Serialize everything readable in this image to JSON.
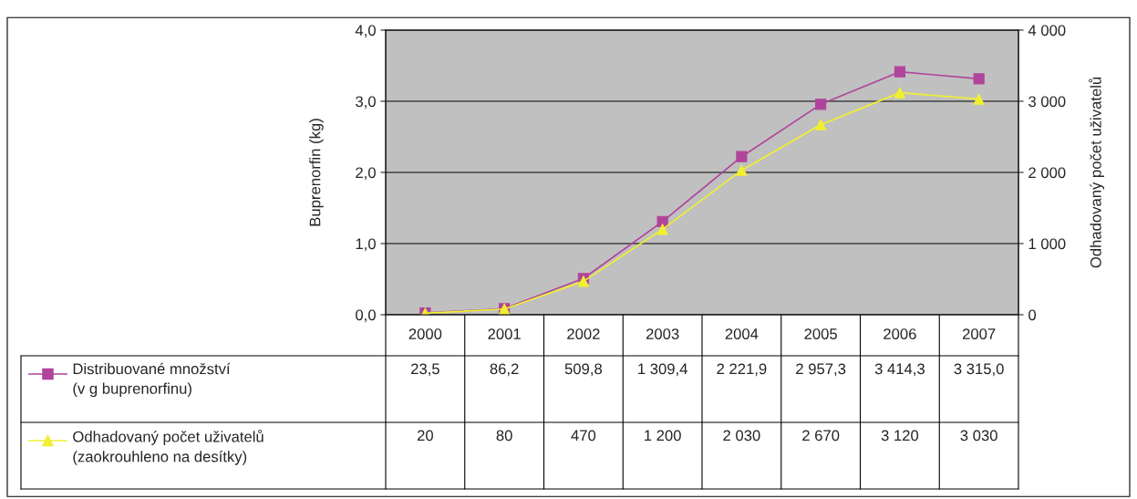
{
  "chart_data": {
    "type": "line",
    "categories": [
      "2000",
      "2001",
      "2002",
      "2003",
      "2004",
      "2005",
      "2006",
      "2007"
    ],
    "ylabel": "Buprenorfin (kg)",
    "y2label": "Odhadovaný počet uživatelů",
    "ylim": [
      0,
      4
    ],
    "yticks": [
      {
        "value": 0,
        "label": "0,0"
      },
      {
        "value": 1,
        "label": "1,0"
      },
      {
        "value": 2,
        "label": "2,0"
      },
      {
        "value": 3,
        "label": "3,0"
      },
      {
        "value": 4,
        "label": "4,0"
      }
    ],
    "y2lim": [
      0,
      4000
    ],
    "y2ticks": [
      0,
      {
        "value": 1000,
        "label": "1 000"
      },
      {
        "value": 2000,
        "label": "2 000"
      },
      {
        "value": 3000,
        "label": "3 000"
      },
      {
        "value": 4000,
        "label": "4 000"
      }
    ],
    "grid": "y",
    "legend": "bottom",
    "series": [
      {
        "name": "Distribuované množství (v g buprenorfinu)",
        "color": "#b0449c",
        "marker": "square",
        "axis": "y2",
        "values": [
          23.5,
          86.2,
          509.8,
          1309.4,
          2221.9,
          2957.3,
          3414.3,
          3315.0
        ],
        "value_labels": [
          "23,5",
          "86,2",
          "509,8",
          "1 309,4",
          "2 221,9",
          "2 957,3",
          "3 414,3",
          "3 315,0"
        ]
      },
      {
        "name": "Odhadovaný počet uživatelů (zaokrouhleno na desítky)",
        "color": "#f0f030",
        "marker": "triangle",
        "axis": "y2",
        "values": [
          20,
          80,
          470,
          1200,
          2030,
          2670,
          3120,
          3030
        ],
        "value_labels": [
          "20",
          "80",
          "470",
          "1 200",
          "2 030",
          "2 670",
          "3 120",
          "3 030"
        ]
      }
    ]
  }
}
